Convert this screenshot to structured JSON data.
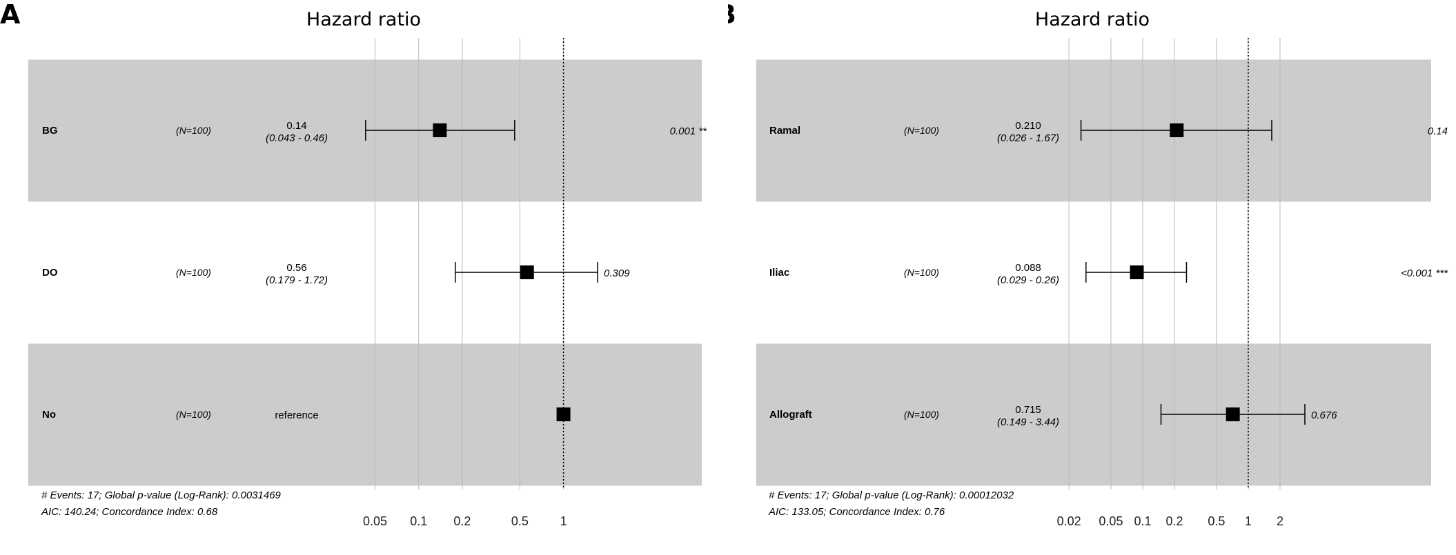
{
  "chart_data": [
    {
      "type": "forest",
      "panel_label": "A",
      "title": "Hazard ratio",
      "xscale": "log",
      "reference_line": 1,
      "xlim": [
        0.03,
        2.05
      ],
      "xticks": [
        0.05,
        0.1,
        0.2,
        0.5,
        1
      ],
      "xtick_labels": [
        "0.05",
        "0.1",
        "0.2",
        "0.5",
        "1"
      ],
      "rows": [
        {
          "variable": "BG",
          "n": "(N=100)",
          "estimate_text": "0.14",
          "ci_text": "(0.043 - 0.46)",
          "pvalue_text": "0.001 **",
          "hr": 0.14,
          "lo": 0.043,
          "hi": 0.46,
          "shaded": true
        },
        {
          "variable": "DO",
          "n": "(N=100)",
          "estimate_text": "0.56",
          "ci_text": "(0.179 - 1.72)",
          "pvalue_text": "0.309",
          "hr": 0.56,
          "lo": 0.179,
          "hi": 1.72,
          "shaded": false
        },
        {
          "variable": "No",
          "n": "(N=100)",
          "estimate_text": "reference",
          "ci_text": "",
          "pvalue_text": "",
          "hr": 1,
          "lo": null,
          "hi": null,
          "shaded": true
        }
      ],
      "footer": [
        "# Events: 17; Global p-value (Log-Rank): 0.0031469",
        "AIC: 140.24; Concordance Index: 0.68"
      ]
    },
    {
      "type": "forest",
      "panel_label": "B",
      "title": "Hazard ratio",
      "xscale": "log",
      "reference_line": 1,
      "xlim": [
        0.0135,
        3.6
      ],
      "xticks": [
        0.02,
        0.05,
        0.1,
        0.2,
        0.5,
        1,
        2
      ],
      "xtick_labels": [
        "0.02",
        "0.05",
        "0.1",
        "0.2",
        "0.5",
        "1",
        "2"
      ],
      "rows": [
        {
          "variable": "Ramal",
          "n": "(N=100)",
          "estimate_text": "0.210",
          "ci_text": "(0.026 - 1.67)",
          "pvalue_text": "0.14",
          "hr": 0.21,
          "lo": 0.026,
          "hi": 1.67,
          "shaded": true
        },
        {
          "variable": "Iliac",
          "n": "(N=100)",
          "estimate_text": "0.088",
          "ci_text": "(0.029 - 0.26)",
          "pvalue_text": "<0.001 ***",
          "hr": 0.088,
          "lo": 0.029,
          "hi": 0.26,
          "shaded": false
        },
        {
          "variable": "Allograft",
          "n": "(N=100)",
          "estimate_text": "0.715",
          "ci_text": "(0.149 - 3.44)",
          "pvalue_text": "0.676",
          "hr": 0.715,
          "lo": 0.149,
          "hi": 3.44,
          "shaded": true
        }
      ],
      "footer": [
        "# Events: 17; Global p-value (Log-Rank): 0.00012032",
        "AIC: 133.05; Concordance Index: 0.76"
      ]
    }
  ]
}
